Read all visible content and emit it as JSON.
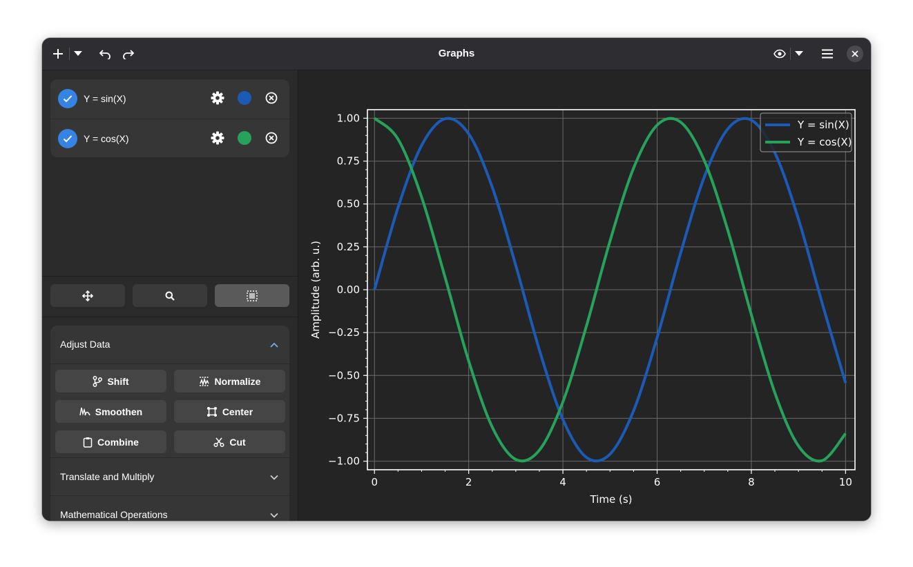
{
  "window": {
    "title": "Graphs"
  },
  "items": [
    {
      "label": "Y = sin(X)",
      "color": "#1c5bb5",
      "checked": true
    },
    {
      "label": "Y = cos(X)",
      "color": "#26a25a",
      "checked": true
    }
  ],
  "sections": {
    "adjust": {
      "label": "Adjust Data",
      "buttons": {
        "shift": "Shift",
        "normalize": "Normalize",
        "smoothen": "Smoothen",
        "center": "Center",
        "combine": "Combine",
        "cut": "Cut"
      }
    },
    "translate": {
      "label": "Translate and Multiply"
    },
    "math": {
      "label": "Mathematical Operations"
    }
  },
  "colors": {
    "accent": "#3584e4",
    "sin": "#1c5bb5",
    "cos": "#26a25a"
  },
  "chart_data": {
    "type": "line",
    "title": "",
    "xlabel": "Time (s)",
    "ylabel": "Amplitude (arb. u.)",
    "xlim": [
      -0.15,
      10.2
    ],
    "ylim": [
      -1.05,
      1.05
    ],
    "x_ticks": [
      "0",
      "2",
      "4",
      "6",
      "8",
      "10"
    ],
    "y_ticks": [
      "1.00",
      "0.75",
      "0.50",
      "0.25",
      "0.00",
      "−0.25",
      "−0.50",
      "−0.75",
      "−1.00"
    ],
    "grid": true,
    "legend_position": "top-right",
    "series": [
      {
        "name": "Y = sin(X)",
        "color": "#1c5bb5",
        "x": [
          0,
          0.5,
          1,
          1.5,
          2,
          2.5,
          3,
          3.5,
          4,
          4.5,
          5,
          5.5,
          6,
          6.5,
          7,
          7.5,
          8,
          8.5,
          9,
          9.5,
          10
        ],
        "y": [
          0,
          0.479,
          0.841,
          0.997,
          0.909,
          0.598,
          0.141,
          -0.351,
          -0.757,
          -0.978,
          -0.959,
          -0.706,
          -0.279,
          0.215,
          0.657,
          0.938,
          0.989,
          0.798,
          0.412,
          -0.075,
          -0.544
        ]
      },
      {
        "name": "Y = cos(X)",
        "color": "#26a25a",
        "x": [
          0,
          0.5,
          1,
          1.5,
          2,
          2.5,
          3,
          3.5,
          4,
          4.5,
          5,
          5.5,
          6,
          6.5,
          7,
          7.5,
          8,
          8.5,
          9,
          9.5,
          10
        ],
        "y": [
          1,
          0.878,
          0.54,
          0.071,
          -0.416,
          -0.801,
          -0.99,
          -0.936,
          -0.654,
          -0.211,
          0.284,
          0.709,
          0.96,
          0.977,
          0.754,
          0.347,
          -0.146,
          -0.602,
          -0.911,
          -0.997,
          -0.839
        ]
      }
    ]
  }
}
